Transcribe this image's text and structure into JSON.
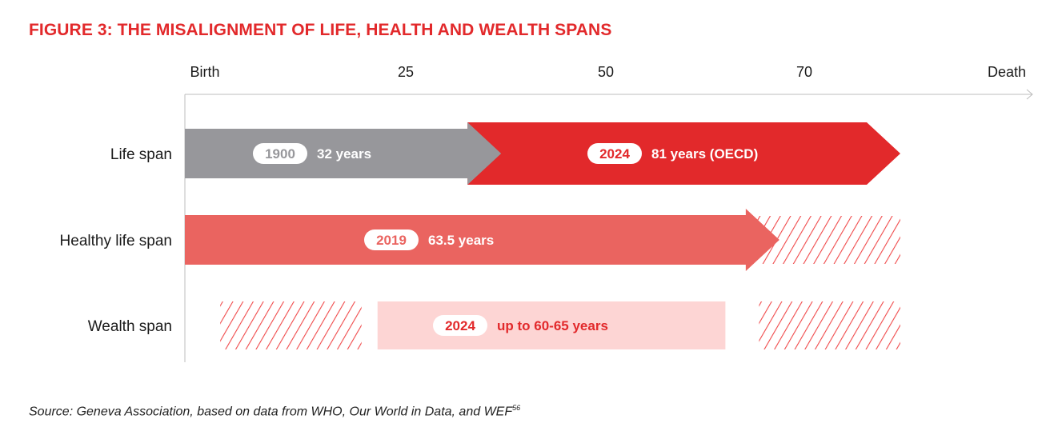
{
  "title": "FIGURE 3: THE MISALIGNMENT OF LIFE, HEALTH AND WEALTH SPANS",
  "source": {
    "text": "Source: Geneva Association, based on data from WHO, Our World in Data, and WEF",
    "footnote": "56"
  },
  "colors": {
    "grey": "#97979b",
    "red": "#e2292b",
    "salmon": "#ea6460",
    "pink": "#fdd5d4",
    "hatch": "#f04a4b",
    "title": "#e2292b"
  },
  "chart_data": {
    "type": "bar",
    "orientation": "horizontal",
    "x_axis": {
      "ticks": [
        {
          "label": "Birth",
          "value": 0
        },
        {
          "label": "25",
          "value": 25
        },
        {
          "label": "50",
          "value": 50
        },
        {
          "label": "70",
          "value": 70
        },
        {
          "label": "Death",
          "value": 88
        }
      ]
    },
    "rows": [
      {
        "label": "Life span",
        "segments": [
          {
            "year": "1900",
            "text": "32 years",
            "start": 0,
            "end": 32,
            "style": "arrow",
            "color": "grey"
          },
          {
            "year": "2024",
            "text": "81 years (OECD)",
            "start": 32,
            "end": 81,
            "style": "arrow",
            "color": "red"
          }
        ]
      },
      {
        "label": "Healthy life span",
        "segments": [
          {
            "year": "2019",
            "text": "63.5 years",
            "start": 0,
            "end": 63.5,
            "style": "arrow",
            "color": "salmon"
          },
          {
            "start": 63.5,
            "end": 81,
            "style": "hatched"
          }
        ]
      },
      {
        "label": "Wealth span",
        "segments": [
          {
            "start": 4,
            "end": 20,
            "style": "hatched"
          },
          {
            "year": "2024",
            "text": "up to 60-65 years",
            "start": 20,
            "end": 65,
            "style": "box",
            "color": "pink"
          },
          {
            "start": 65,
            "end": 81,
            "style": "hatched"
          }
        ]
      }
    ]
  }
}
